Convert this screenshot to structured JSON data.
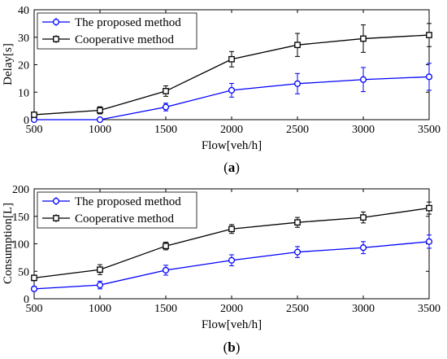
{
  "chart_data": [
    {
      "type": "line",
      "panel_label_text": "(a)",
      "panel_letter": "a",
      "xlabel": "Flow[veh/h]",
      "ylabel": "Delay[s]",
      "x": [
        500,
        1000,
        1500,
        2000,
        2500,
        3000,
        3500
      ],
      "xlim": [
        500,
        3500
      ],
      "ylim": [
        0,
        40
      ],
      "xticks": [
        500,
        1000,
        1500,
        2000,
        2500,
        3000,
        3500
      ],
      "yticks": [
        0,
        10,
        20,
        30,
        40
      ],
      "grid": false,
      "legend_position": "top-left",
      "series": [
        {
          "name": "The proposed method",
          "color": "#0000ff",
          "marker": "circle",
          "values": [
            0,
            0,
            4.6,
            10.7,
            13.1,
            14.6,
            15.6
          ],
          "errors": [
            0.5,
            0.5,
            1.4,
            2.5,
            3.7,
            4.4,
            4.9
          ]
        },
        {
          "name": "Cooperative method",
          "color": "#000000",
          "marker": "square",
          "values": [
            1.8,
            3.4,
            10.4,
            22.0,
            27.2,
            29.5,
            30.8
          ],
          "errors": [
            0.8,
            1.3,
            1.9,
            2.8,
            4.2,
            5.0,
            4.2
          ]
        }
      ]
    },
    {
      "type": "line",
      "panel_label_text": "(b)",
      "panel_letter": "b",
      "xlabel": "Flow[veh/h]",
      "ylabel": "Consumption[L]",
      "x": [
        500,
        1000,
        1500,
        2000,
        2500,
        3000,
        3500
      ],
      "xlim": [
        500,
        3500
      ],
      "ylim": [
        0,
        200
      ],
      "xticks": [
        500,
        1000,
        1500,
        2000,
        2500,
        3000,
        3500
      ],
      "yticks": [
        0,
        50,
        100,
        150,
        200
      ],
      "grid": false,
      "legend_position": "top-left",
      "series": [
        {
          "name": "The proposed method",
          "color": "#0000ff",
          "marker": "circle",
          "values": [
            18,
            25,
            52,
            70,
            85,
            93,
            104
          ],
          "errors": [
            4,
            7,
            9,
            10,
            10,
            11,
            12
          ]
        },
        {
          "name": "Cooperative method",
          "color": "#000000",
          "marker": "square",
          "values": [
            38,
            53,
            96,
            127,
            139,
            148,
            165
          ],
          "errors": [
            5,
            9,
            7,
            8,
            9,
            10,
            11
          ]
        }
      ]
    }
  ]
}
